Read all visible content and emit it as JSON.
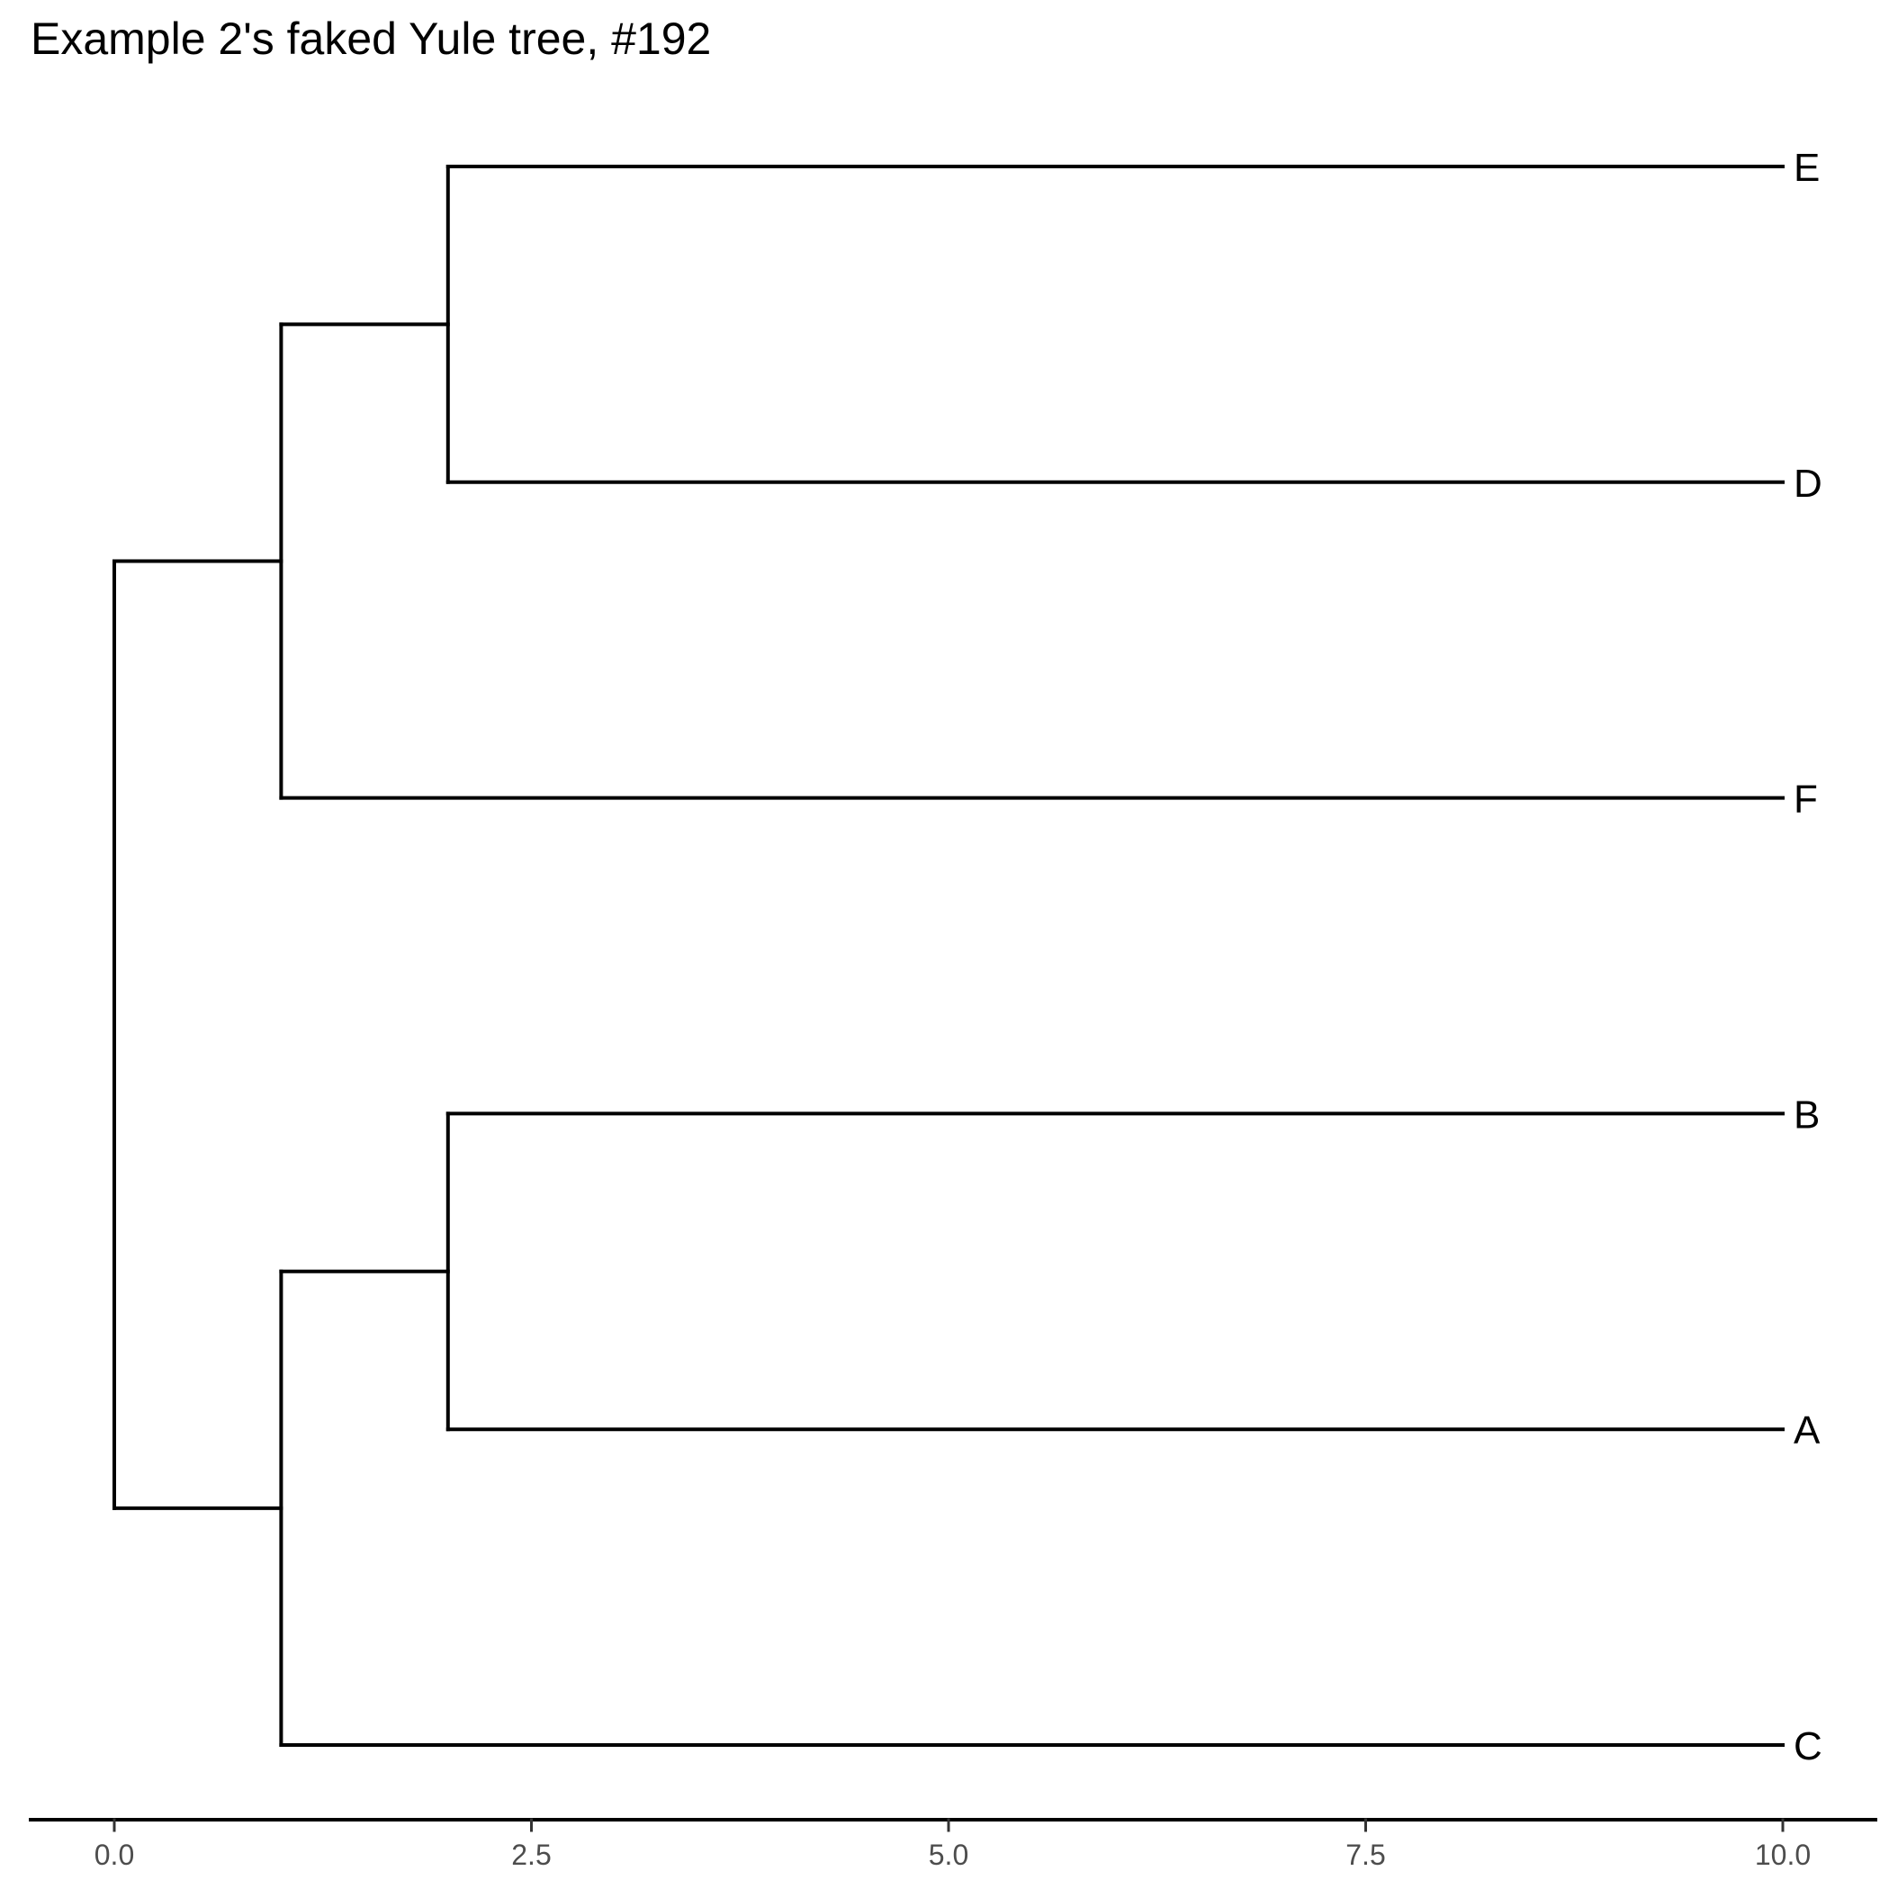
{
  "chart_data": {
    "type": "tree",
    "title": "Example 2's faked Yule tree, #192",
    "xlabel": "",
    "ylabel": "",
    "xlim": [
      0,
      10
    ],
    "x_ticks": [
      0,
      2.5,
      5,
      7.5,
      10
    ],
    "x_tick_labels": [
      "0.0",
      "2.5",
      "5.0",
      "7.5",
      "10.0"
    ],
    "tips": [
      {
        "label": "E",
        "x": 10,
        "y": 6
      },
      {
        "label": "D",
        "x": 10,
        "y": 5
      },
      {
        "label": "F",
        "x": 10,
        "y": 4
      },
      {
        "label": "B",
        "x": 10,
        "y": 3
      },
      {
        "label": "A",
        "x": 10,
        "y": 2
      },
      {
        "label": "C",
        "x": 10,
        "y": 1
      }
    ],
    "branches": [
      {
        "from_x": 0,
        "to_x": 1,
        "y": 4.75
      },
      {
        "from_x": 0,
        "to_x": 1,
        "y": 1.75
      },
      {
        "from_x": 1,
        "to_x": 2,
        "y": 5.5
      },
      {
        "from_x": 1,
        "to_x": 10,
        "y": 4
      },
      {
        "from_x": 2,
        "to_x": 10,
        "y": 6
      },
      {
        "from_x": 2,
        "to_x": 10,
        "y": 5
      },
      {
        "from_x": 1,
        "to_x": 2,
        "y": 2.5
      },
      {
        "from_x": 1,
        "to_x": 10,
        "y": 1
      },
      {
        "from_x": 2,
        "to_x": 10,
        "y": 3
      },
      {
        "from_x": 2,
        "to_x": 10,
        "y": 2
      }
    ],
    "connectors": [
      {
        "x": 0,
        "y1": 1.75,
        "y2": 4.75
      },
      {
        "x": 1,
        "y1": 4,
        "y2": 5.5
      },
      {
        "x": 2,
        "y1": 5,
        "y2": 6
      },
      {
        "x": 1,
        "y1": 1,
        "y2": 2.5
      },
      {
        "x": 2,
        "y1": 2,
        "y2": 3
      }
    ],
    "grid": false,
    "legend": "none"
  }
}
